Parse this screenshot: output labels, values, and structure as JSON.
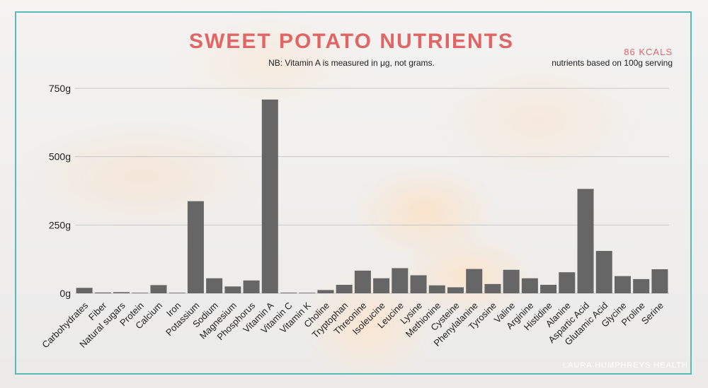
{
  "header": {
    "title": "SWEET POTATO NUTRIENTS",
    "subtitle": "NB: Vitamin A is measured in μg, not grams.",
    "kcals": "86 KCALS",
    "serving_note": "nutrients based on 100g serving"
  },
  "footer": {
    "credit": "LAURA HUMPHREYS HEALTH"
  },
  "colors": {
    "bar": "#666666",
    "title": "#e06666",
    "frame": "#5bbab3",
    "grid": "#c8c8c8"
  },
  "chart_data": {
    "type": "bar",
    "title": "SWEET POTATO NUTRIENTS",
    "xlabel": "",
    "ylabel": "",
    "ylim": [
      0,
      750
    ],
    "yticks": [
      0,
      250,
      500,
      750
    ],
    "ytick_labels": [
      "0g",
      "250g",
      "500g",
      "750g"
    ],
    "grid": true,
    "categories": [
      "Carbohydrates",
      "Fiber",
      "Natural sugars",
      "Protein",
      "Calcium",
      "Iron",
      "Potassium",
      "Sodium",
      "Magnesium",
      "Phosphorus",
      "Vitamin A",
      "Vitamin C",
      "Vitamin K",
      "Choline",
      "Tryptophan",
      "Threonine",
      "Isoleucine",
      "Leucine",
      "Lysine",
      "Methionine",
      "Cysteine",
      "Phenylalanine",
      "Tyrosine",
      "Valine",
      "Arginine",
      "Histidine",
      "Alanine",
      "Aspartic Acid",
      "Glutamic Acid",
      "Glycine",
      "Proline",
      "Serine"
    ],
    "values": [
      20,
      3,
      4.2,
      1.6,
      30,
      0.6,
      337,
      55,
      25,
      47,
      709,
      2.4,
      1.8,
      12,
      31,
      83,
      55,
      92,
      66,
      29,
      22,
      89,
      34,
      86,
      55,
      31,
      77,
      382,
      155,
      63,
      52,
      88
    ]
  }
}
